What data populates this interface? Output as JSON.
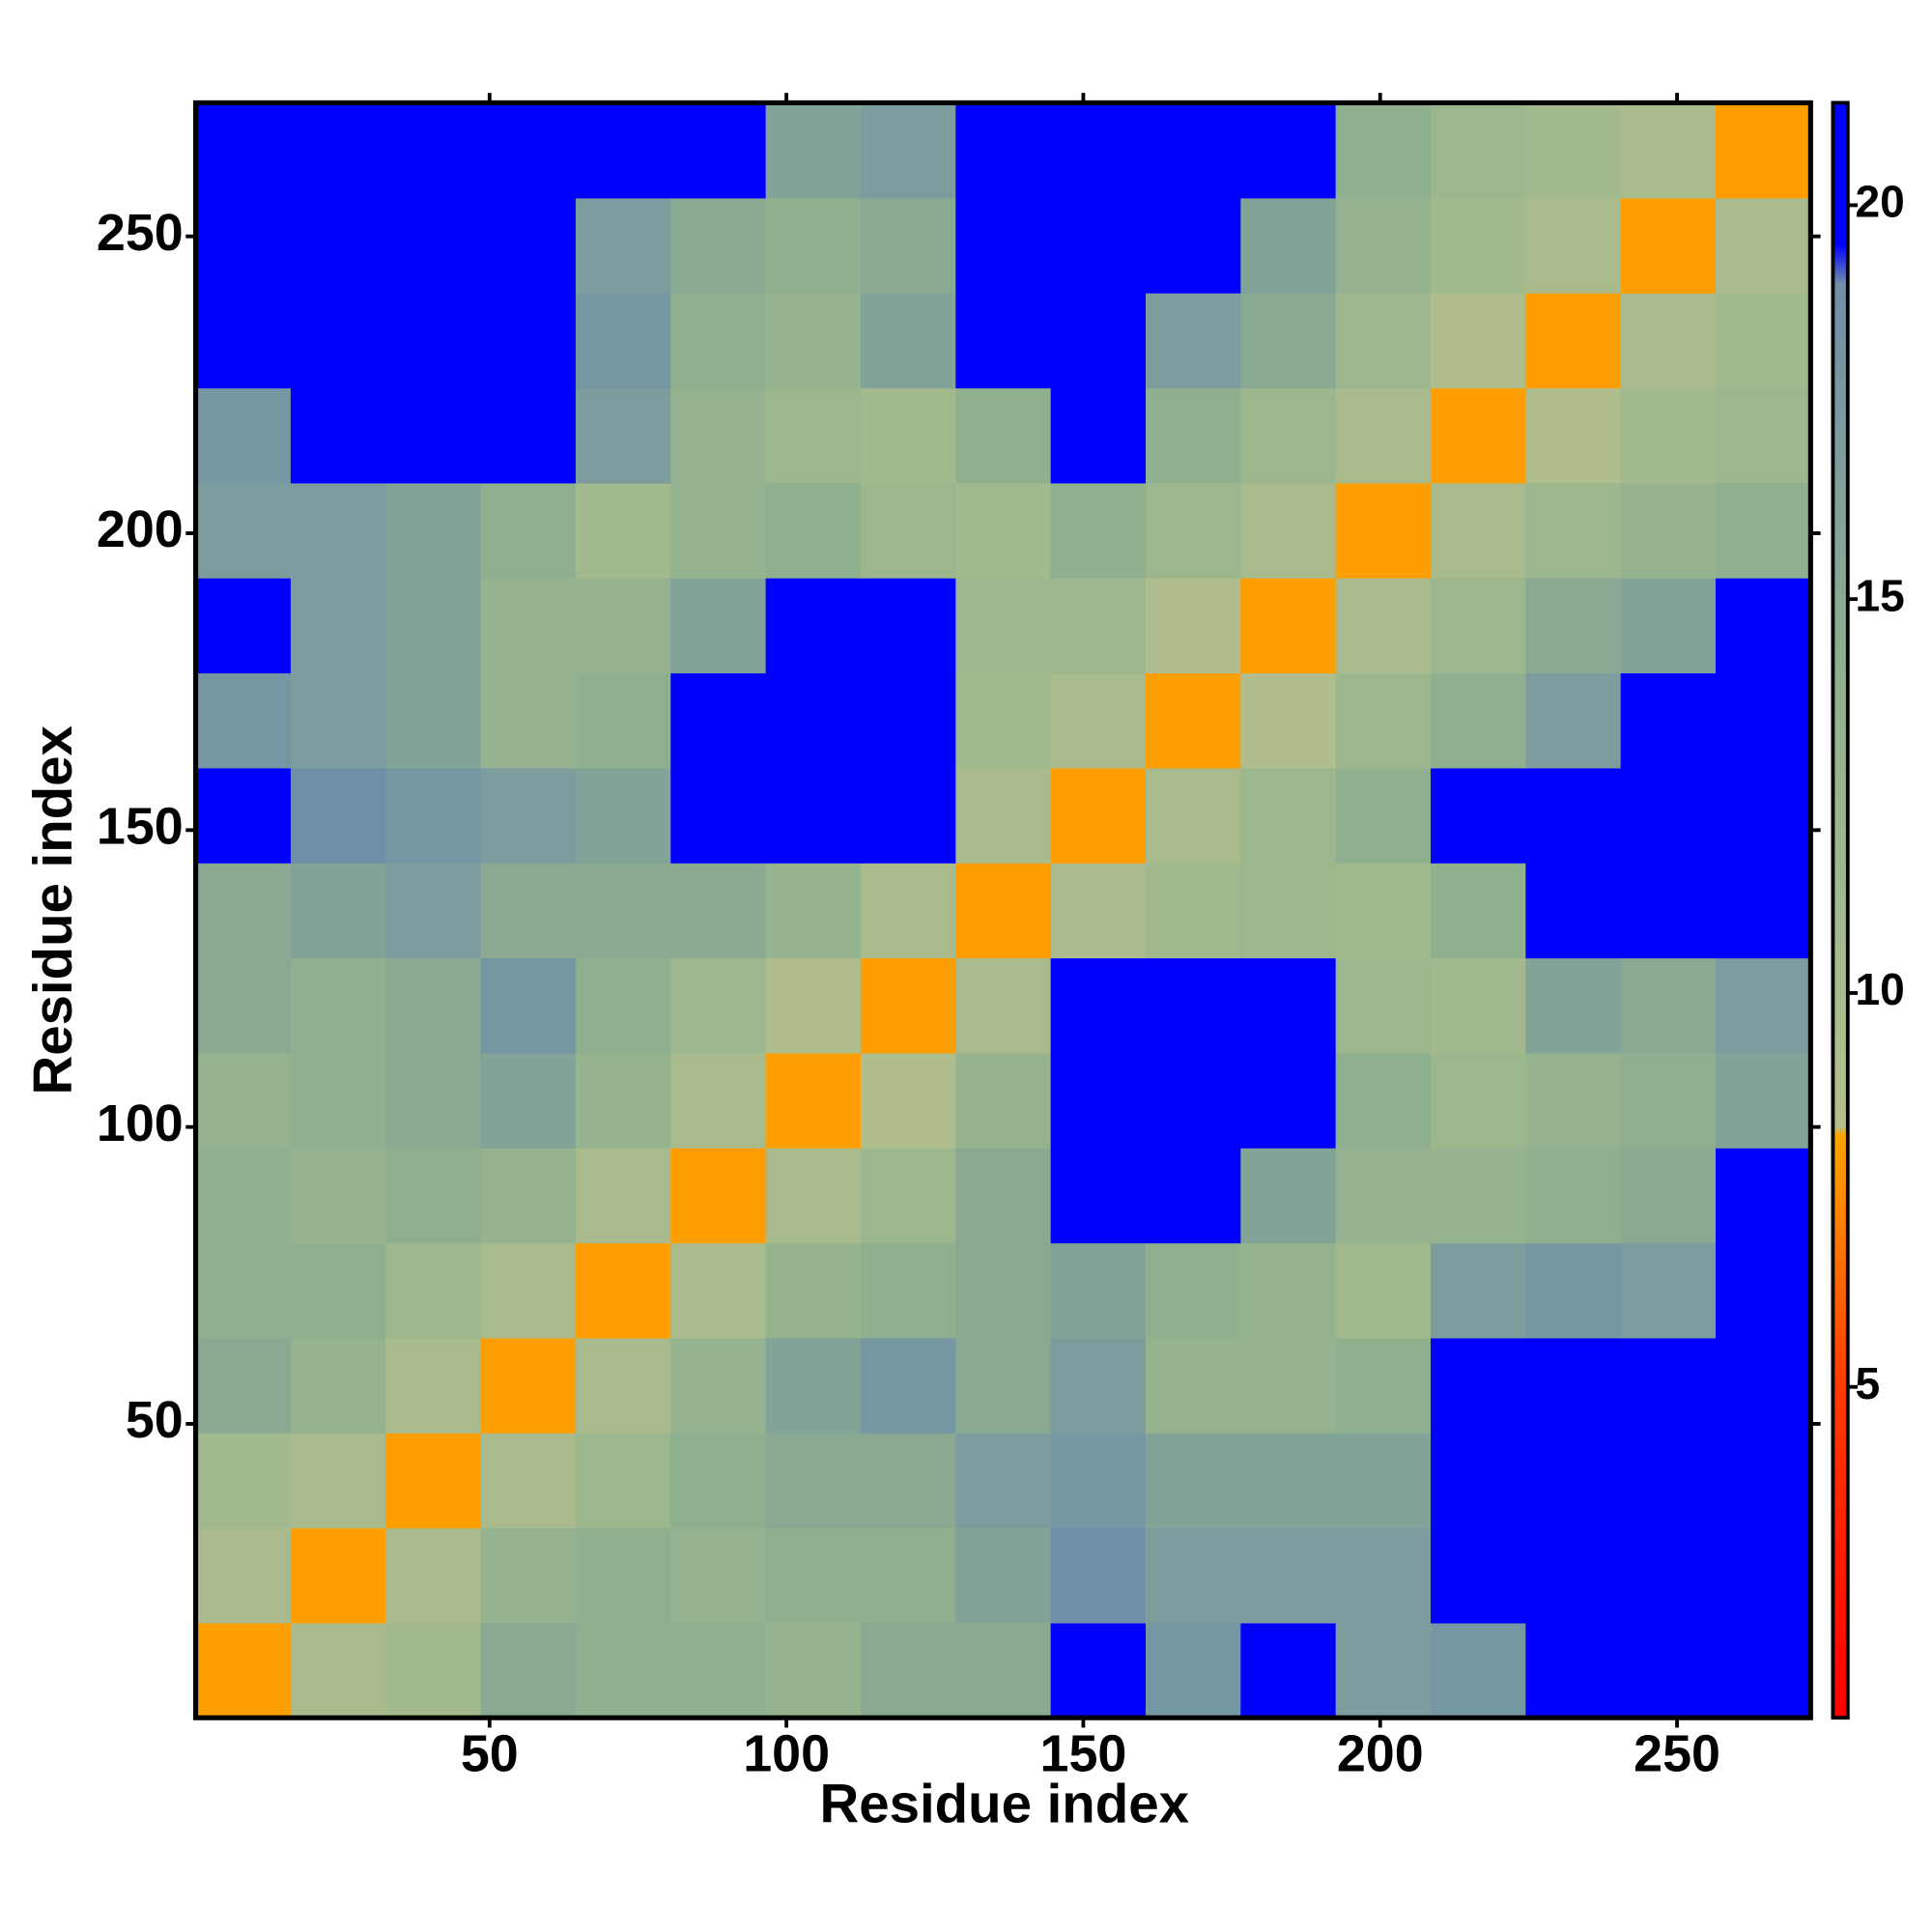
{
  "chart_data": {
    "type": "heatmap",
    "xlabel": "Residue index",
    "ylabel": "Residue index",
    "xlim": [
      0.5,
      272.5
    ],
    "ylim": [
      0.5,
      272.5
    ],
    "xticks": [
      50,
      100,
      150,
      200,
      250
    ],
    "yticks": [
      50,
      100,
      150,
      200,
      250
    ],
    "xbins": [
      0.5,
      16.5,
      32.5,
      48.5,
      64.5,
      80.5,
      96.5,
      112.5,
      128.5,
      144.5,
      160.5,
      176.5,
      192.5,
      208.5,
      224.5,
      240.5,
      256.5,
      272.5
    ],
    "ybins": [
      0.5,
      16.5,
      32.5,
      48.5,
      64.5,
      80.5,
      96.5,
      112.5,
      128.5,
      144.5,
      160.5,
      176.5,
      192.5,
      208.5,
      224.5,
      240.5,
      256.5,
      272.5
    ],
    "z": [
      [
        8,
        10,
        11,
        15,
        14,
        14,
        13,
        15,
        15,
        21,
        18,
        21,
        17,
        18,
        21,
        21,
        21
      ],
      [
        10,
        8,
        10,
        13,
        14,
        13,
        14,
        14,
        16,
        19,
        17,
        17,
        17,
        21,
        21,
        21,
        21
      ],
      [
        11,
        10,
        8,
        10,
        12,
        14,
        15,
        15,
        17,
        18,
        16,
        16,
        16,
        21,
        21,
        21,
        21
      ],
      [
        15,
        13,
        10,
        8,
        10,
        13,
        16,
        18,
        15,
        17,
        13,
        13,
        14,
        21,
        21,
        21,
        21
      ],
      [
        14,
        14,
        12,
        10,
        8,
        10,
        13,
        14,
        15,
        16,
        14,
        13,
        11,
        17,
        18,
        17,
        21
      ],
      [
        14,
        13,
        14,
        13,
        10,
        8,
        10,
        12,
        15,
        21,
        21,
        16,
        13,
        13,
        14,
        15,
        21
      ],
      [
        13,
        14,
        15,
        16,
        13,
        10,
        8,
        9,
        13,
        21,
        21,
        21,
        14,
        12,
        13,
        14,
        16
      ],
      [
        15,
        14,
        15,
        18,
        14,
        12,
        9,
        8,
        10,
        21,
        21,
        21,
        12,
        11,
        16,
        15,
        17
      ],
      [
        15,
        16,
        17,
        15,
        15,
        15,
        13,
        10,
        8,
        10,
        11,
        12,
        11,
        14,
        21,
        21,
        21
      ],
      [
        21,
        19,
        18,
        17,
        16,
        21,
        21,
        21,
        10,
        8,
        10,
        12,
        14,
        21,
        21,
        21,
        21
      ],
      [
        18,
        17,
        16,
        13,
        14,
        21,
        21,
        21,
        11,
        10,
        8,
        9,
        12,
        14,
        17,
        21,
        21
      ],
      [
        21,
        17,
        16,
        13,
        13,
        16,
        21,
        21,
        12,
        12,
        9,
        8,
        10,
        12,
        15,
        16,
        21
      ],
      [
        17,
        17,
        16,
        14,
        11,
        13,
        14,
        12,
        11,
        14,
        12,
        10,
        8,
        10,
        12,
        13,
        14
      ],
      [
        18,
        21,
        21,
        21,
        17,
        13,
        12,
        11,
        14,
        21,
        14,
        12,
        10,
        8,
        9,
        11,
        12
      ],
      [
        21,
        21,
        21,
        21,
        18,
        14,
        13,
        16,
        21,
        21,
        17,
        15,
        12,
        9,
        8,
        10,
        11
      ],
      [
        21,
        21,
        21,
        21,
        17,
        15,
        14,
        15,
        21,
        21,
        21,
        16,
        13,
        11,
        10,
        8,
        10
      ],
      [
        21,
        21,
        21,
        21,
        21,
        21,
        16,
        17,
        21,
        21,
        21,
        21,
        14,
        12,
        11,
        10,
        8
      ]
    ],
    "colorbar": {
      "lim": [
        0.8,
        21.3
      ],
      "ticks": [
        5,
        10,
        15,
        20
      ],
      "colorscale": [
        [
          0.8,
          "#ff0000"
        ],
        [
          5,
          "#ff3a00"
        ],
        [
          8.2,
          "#ffa500"
        ],
        [
          8.3,
          "#b4c08c"
        ],
        [
          14,
          "#8fb08e"
        ],
        [
          19,
          "#6f8fa8"
        ],
        [
          19.5,
          "#0000ff"
        ],
        [
          21.3,
          "#0000ff"
        ]
      ]
    }
  }
}
